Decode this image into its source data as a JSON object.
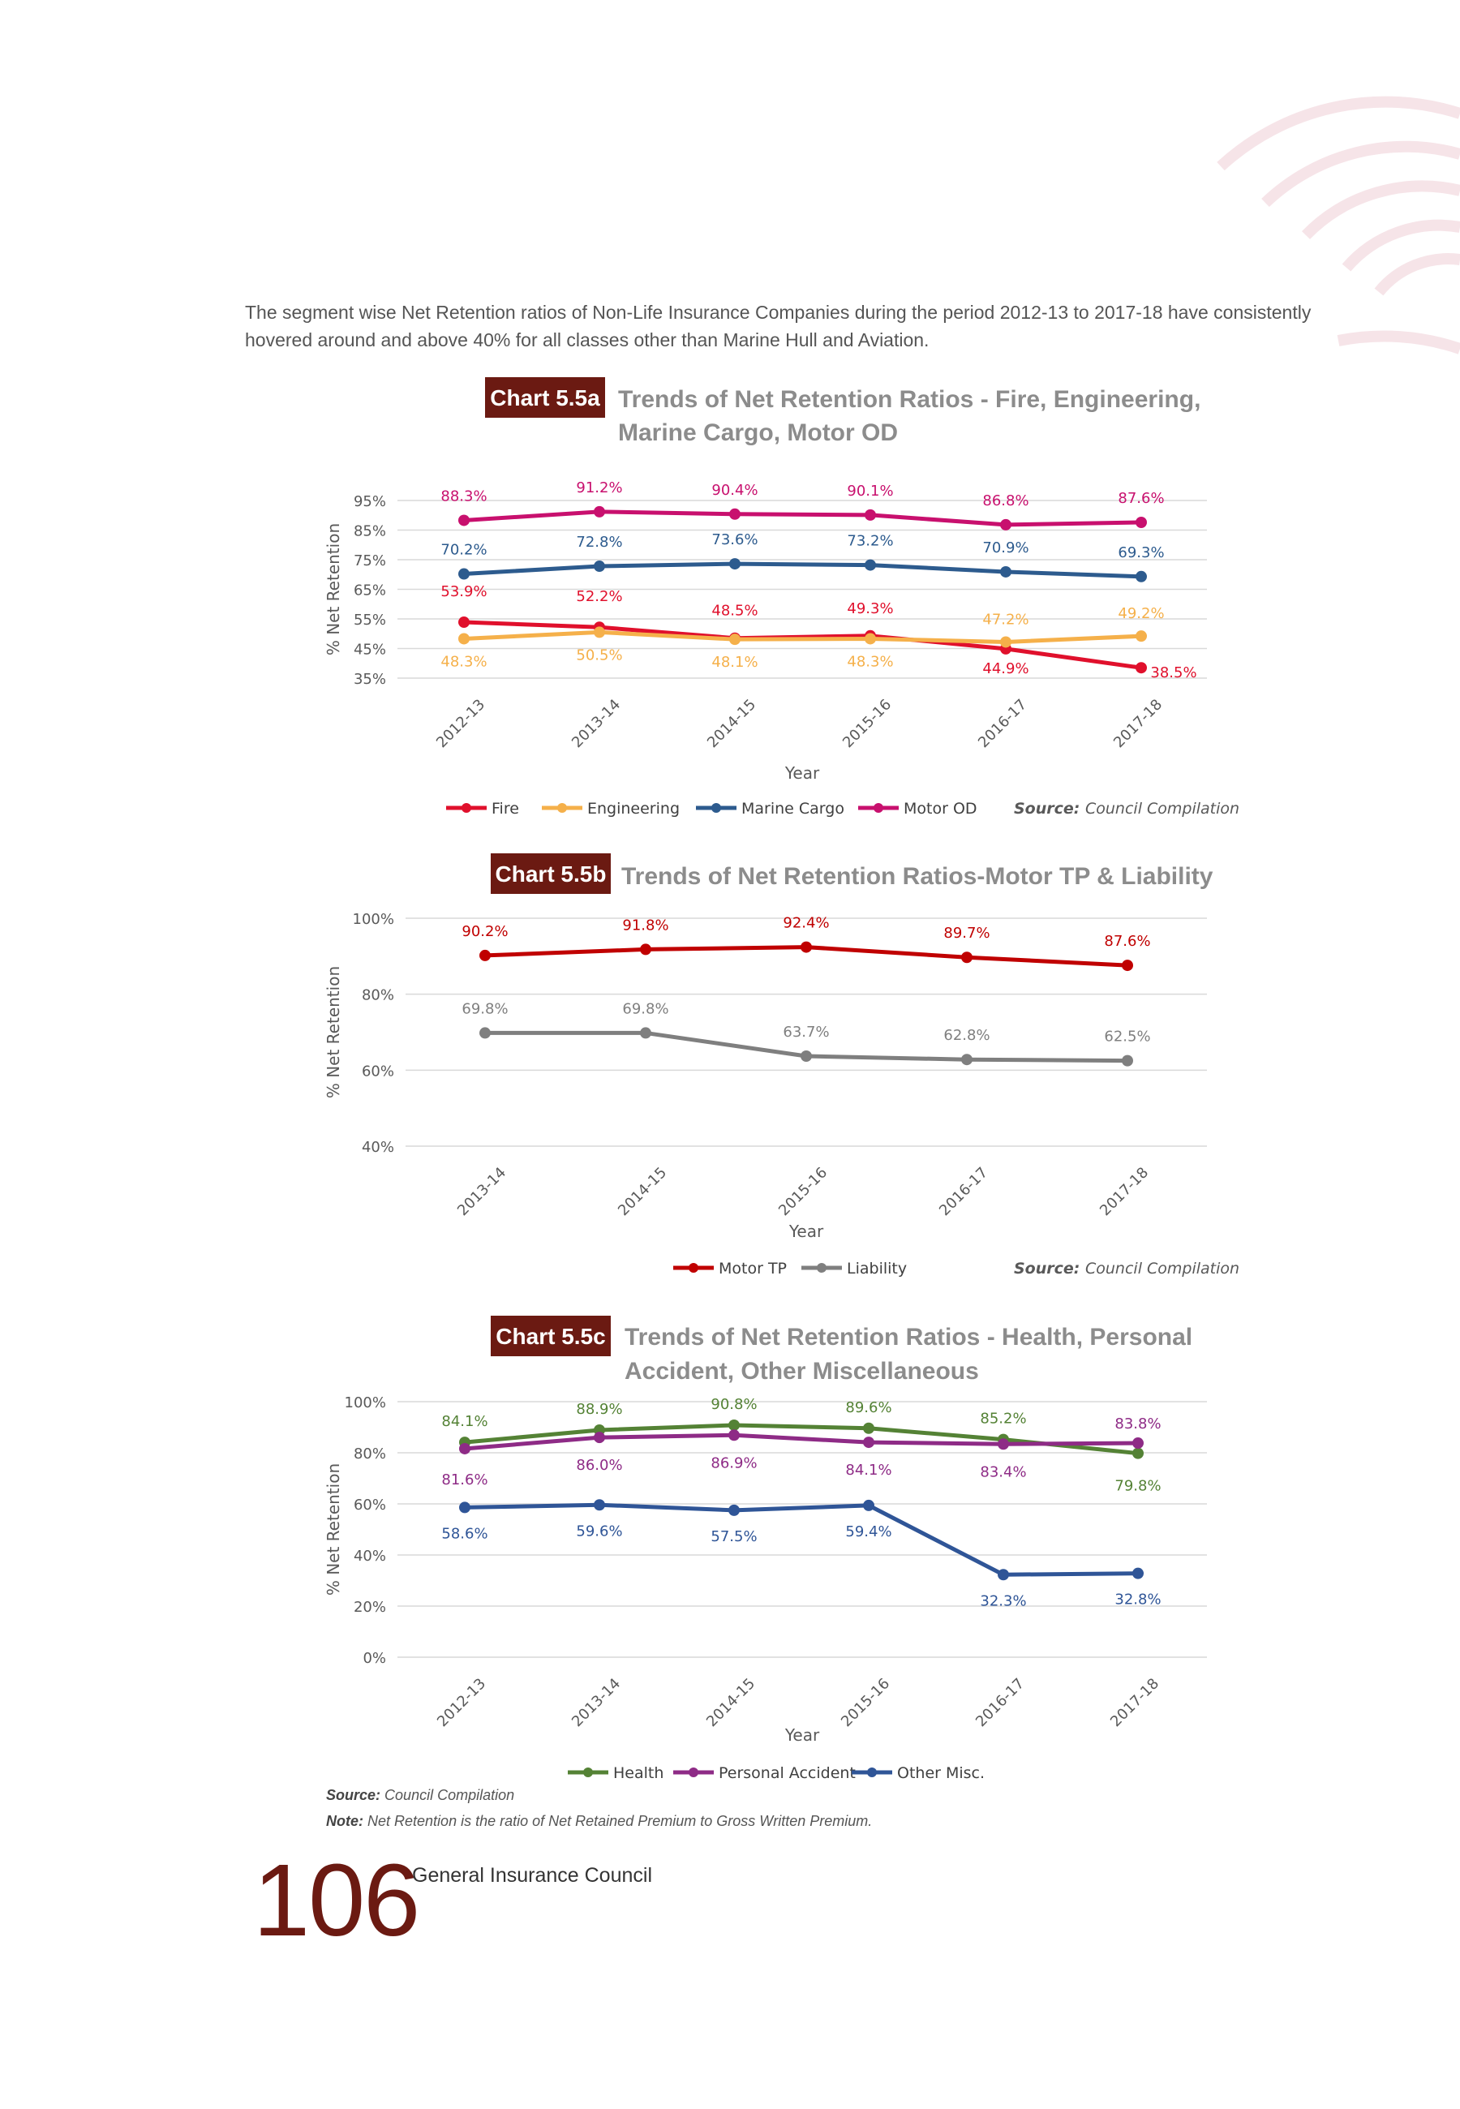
{
  "intro_text": "The segment wise Net Retention ratios of Non-Life Insurance Companies during the period 2012-13 to 2017-18 have consistently hovered around and above 40% for all classes other than Marine Hull and Aviation.",
  "colors": {
    "tag_bg": "#6b1a12",
    "title_gray": "#8c8c8c",
    "fire": "#e0102c",
    "engineering": "#f5b04a",
    "marine_cargo": "#2d5b8e",
    "motor_od": "#c8106e",
    "motor_tp": "#c00000",
    "liability": "#7f7f7f",
    "health": "#548235",
    "personal_accident": "#8e2b86",
    "other_misc": "#2f5597"
  },
  "chart_data": [
    {
      "type": "line",
      "tag": "Chart 5.5a",
      "title": "Trends of Net Retention Ratios - Fire, Engineering,",
      "title_line2": "Marine Cargo, Motor OD",
      "xlabel": "Year",
      "ylabel": "% Net Retention",
      "ylim": [
        35,
        95
      ],
      "yticks": [
        "95%",
        "85%",
        "75%",
        "65%",
        "55%",
        "45%",
        "35%"
      ],
      "categories": [
        "2012-13",
        "2013-14",
        "2014-15",
        "2015-16",
        "2016-17",
        "2017-18"
      ],
      "grid": true,
      "legend_position": "bottom",
      "source_label": "Source:",
      "source_text": "Council Compilation",
      "series": [
        {
          "name": "Fire",
          "color": "#e0102c",
          "values": [
            53.9,
            52.2,
            48.5,
            49.3,
            44.9,
            38.5
          ],
          "labels": [
            "53.9%",
            "52.2%",
            "48.5%",
            "49.3%",
            "44.9%",
            "38.5%"
          ]
        },
        {
          "name": "Engineering",
          "color": "#f5b04a",
          "values": [
            48.3,
            50.5,
            48.1,
            48.3,
            47.2,
            49.2
          ],
          "labels": [
            "48.3%",
            "50.5%",
            "48.1%",
            "48.3%",
            "47.2%",
            "49.2%"
          ]
        },
        {
          "name": "Marine Cargo",
          "color": "#2d5b8e",
          "values": [
            70.2,
            72.8,
            73.6,
            73.2,
            70.9,
            69.3
          ],
          "labels": [
            "70.2%",
            "72.8%",
            "73.6%",
            "73.2%",
            "70.9%",
            "69.3%"
          ]
        },
        {
          "name": "Motor OD",
          "color": "#c8106e",
          "values": [
            88.3,
            91.2,
            90.4,
            90.1,
            86.8,
            87.6
          ],
          "labels": [
            "88.3%",
            "91.2%",
            "90.4%",
            "90.1%",
            "86.8%",
            "87.6%"
          ]
        }
      ]
    },
    {
      "type": "line",
      "tag": "Chart 5.5b",
      "title": "Trends of Net Retention Ratios-Motor TP & Liability",
      "title_line2": "",
      "xlabel": "Year",
      "ylabel": "% Net Retention",
      "ylim": [
        40,
        100
      ],
      "yticks": [
        "100%",
        "80%",
        "60%",
        "40%"
      ],
      "categories": [
        "2013-14",
        "2014-15",
        "2015-16",
        "2016-17",
        "2017-18"
      ],
      "grid": true,
      "legend_position": "bottom",
      "source_label": "Source:",
      "source_text": "Council Compilation",
      "series": [
        {
          "name": "Motor TP",
          "color": "#c00000",
          "values": [
            90.2,
            91.8,
            92.4,
            89.7,
            87.6
          ],
          "labels": [
            "90.2%",
            "91.8%",
            "92.4%",
            "89.7%",
            "87.6%"
          ]
        },
        {
          "name": "Liability",
          "color": "#7f7f7f",
          "values": [
            69.8,
            69.8,
            63.7,
            62.8,
            62.5
          ],
          "labels": [
            "69.8%",
            "69.8%",
            "63.7%",
            "62.8%",
            "62.5%"
          ]
        }
      ]
    },
    {
      "type": "line",
      "tag": "Chart 5.5c",
      "title": "Trends of Net Retention Ratios - Health, Personal",
      "title_line2": "Accident, Other Miscellaneous",
      "xlabel": "Year",
      "ylabel": "% Net Retention",
      "ylim": [
        0,
        100
      ],
      "yticks": [
        "100%",
        "80%",
        "60%",
        "40%",
        "20%",
        "0%"
      ],
      "categories": [
        "2012-13",
        "2013-14",
        "2014-15",
        "2015-16",
        "2016-17",
        "2017-18"
      ],
      "grid": true,
      "legend_position": "bottom",
      "source_label": "",
      "source_text": "",
      "series": [
        {
          "name": "Health",
          "color": "#548235",
          "values": [
            84.1,
            88.9,
            90.8,
            89.6,
            85.2,
            79.8
          ],
          "labels": [
            "84.1%",
            "88.9%",
            "90.8%",
            "89.6%",
            "85.2%",
            "79.8%"
          ]
        },
        {
          "name": "Personal Accident",
          "color": "#8e2b86",
          "values": [
            81.6,
            86.0,
            86.9,
            84.1,
            83.4,
            83.8
          ],
          "labels": [
            "81.6%",
            "86.0%",
            "86.9%",
            "84.1%",
            "83.4%",
            "83.8%"
          ]
        },
        {
          "name": "Other Misc.",
          "color": "#2f5597",
          "values": [
            58.6,
            59.6,
            57.5,
            59.4,
            32.3,
            32.8
          ],
          "labels": [
            "58.6%",
            "59.6%",
            "57.5%",
            "59.4%",
            "32.3%",
            "32.8%"
          ]
        }
      ]
    }
  ],
  "footer": {
    "source_label": "Source:",
    "source_text": "Council Compilation",
    "note_label": "Note:",
    "note_text": "Net Retention is the ratio of Net Retained Premium to Gross Written Premium.",
    "page_number": "106",
    "publisher": "General Insurance Council"
  }
}
